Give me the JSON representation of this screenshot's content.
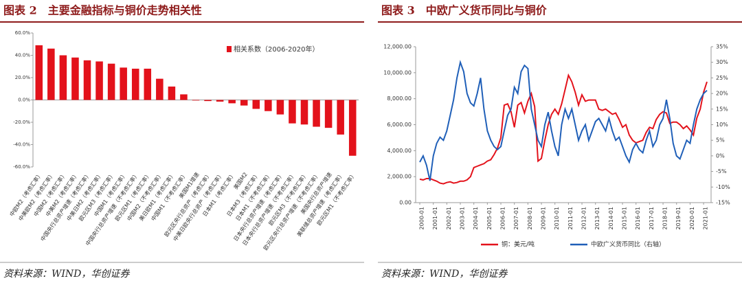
{
  "chart_data": [
    {
      "type": "bar",
      "title": "图表 2　主要金融指标与铜价走势相关性",
      "source": "资料来源：WIND，华创证券",
      "categories": [
        "中欧M2（考虑汇率）",
        "中美欧M2（考虑汇率）",
        "中国M2（考虑汇率）",
        "中美M2（考虑汇率）",
        "中国央行总资产增速（考虑汇率）",
        "中美日M2（考虑汇率）",
        "欧元区M3（考虑汇率）",
        "中国M1（考虑汇率）",
        "中国央行总资产增速（不考虑汇率）",
        "欧元区M1（考虑汇率）",
        "中国M2（不考虑汇率）",
        "美日欧M1（考虑汇率）",
        "中国M1（不考虑汇率）",
        "美国M1增速",
        "欧元区央行总资产（考虑汇率）",
        "中美日欧央行总资产（考虑汇率）",
        "日本M1（考虑汇率）",
        "美国M2",
        "日本M3（考虑汇率）",
        "日本M1（不考虑汇率）",
        "日本央行总资产增速（考虑汇率）",
        "日本央行总资产增速（不考虑汇率）",
        "欧元区M3（不考虑汇率）",
        "欧元区央行总资产增速（不考虑汇率）",
        "美国央行总资产增速",
        "美联储总资产增速（考虑汇率）",
        "欧元区M1（不考虑汇率）"
      ],
      "series": [
        {
          "name": "相关系数（2006-2020年）",
          "color": "#e3121b",
          "values": [
            49,
            46,
            40,
            38,
            35.5,
            34.5,
            32.5,
            29,
            28,
            28,
            19,
            12,
            5,
            -0.5,
            -1,
            -1.5,
            -3,
            -5,
            -8,
            -10,
            -13,
            -21,
            -22,
            -24,
            -25,
            -31,
            -50
          ]
        }
      ],
      "ylim": [
        -60,
        60
      ],
      "yticks": [
        {
          "value": -60,
          "label": "-60.0%"
        },
        {
          "value": -40,
          "label": "-40.0%"
        },
        {
          "value": -20,
          "label": "-20.0%"
        },
        {
          "value": 0,
          "label": "0.0%"
        },
        {
          "value": 20,
          "label": "20.0%"
        },
        {
          "value": 40,
          "label": "40.0%"
        },
        {
          "value": 60,
          "label": "60.0%"
        }
      ],
      "legend": "top-right",
      "grid": false
    },
    {
      "type": "line",
      "title": "图表 3　中欧广义货币同比与铜价",
      "source": "资料来源：WIND，华创证券",
      "x": [
        "2000-01",
        null,
        null,
        null,
        "2001-01",
        null,
        null,
        null,
        "2002-01",
        null,
        null,
        null,
        "2003-01",
        null,
        null,
        null,
        "2004-01",
        null,
        null,
        null,
        "2005-01",
        null,
        null,
        null,
        "2006-01",
        null,
        null,
        null,
        "2007-01",
        null,
        null,
        null,
        "2008-01",
        null,
        null,
        null,
        "2009-01",
        null,
        null,
        null,
        "2010-01",
        null,
        null,
        null,
        "2011-01",
        null,
        null,
        null,
        "2012-01",
        null,
        null,
        null,
        "2013-01",
        null,
        null,
        null,
        "2014-01",
        null,
        null,
        null,
        "2015-01",
        null,
        null,
        null,
        "2016-01",
        null,
        null,
        null,
        "2017-01",
        null,
        null,
        null,
        "2018-01",
        null,
        null,
        null,
        "2019-01",
        null,
        null,
        null,
        "2020-01",
        null,
        null,
        null,
        "2021-01",
        null
      ],
      "series": [
        {
          "name": "铜：美元/吨",
          "color": "#e3121b",
          "axis": "y",
          "values": [
            1800,
            1750,
            1850,
            1850,
            1750,
            1650,
            1500,
            1450,
            1550,
            1600,
            1500,
            1550,
            1650,
            1650,
            1750,
            2000,
            2700,
            2800,
            2900,
            3000,
            3200,
            3300,
            3700,
            4200,
            5000,
            7500,
            7600,
            7000,
            5800,
            7500,
            7700,
            6900,
            7800,
            8400,
            7400,
            3200,
            3400,
            4800,
            6000,
            6800,
            7200,
            6800,
            7600,
            8700,
            9800,
            9300,
            8500,
            7500,
            8300,
            7800,
            7900,
            7900,
            7900,
            7200,
            7100,
            7200,
            7000,
            6800,
            6900,
            6400,
            5800,
            6000,
            5200,
            4800,
            4600,
            4700,
            4800,
            5400,
            5800,
            5700,
            6400,
            6800,
            7000,
            6900,
            6100,
            6200,
            6200,
            6000,
            5700,
            5900,
            5600,
            5200,
            6500,
            7200,
            8500,
            9300
          ]
        },
        {
          "name": "中欧广义货币同比（右轴）",
          "color": "#1f5fb8",
          "axis": "y2",
          "values": [
            -2,
            0,
            -3,
            -8,
            0,
            4,
            6,
            5,
            8,
            13,
            18,
            25,
            30,
            27,
            20,
            17,
            16,
            20,
            25,
            15,
            8,
            5,
            3,
            2,
            3,
            8,
            13,
            15,
            22,
            20,
            27,
            29,
            28,
            15,
            10,
            5,
            3,
            10,
            14,
            8,
            3,
            0,
            10,
            15,
            12,
            15,
            10,
            5,
            8,
            10,
            5,
            8,
            11,
            12,
            10,
            8,
            12,
            8,
            5,
            6,
            3,
            0,
            -2,
            2,
            4,
            2,
            1,
            5,
            8,
            3,
            5,
            10,
            12,
            18,
            12,
            4,
            0,
            -1,
            2,
            5,
            4,
            10,
            15,
            18,
            20,
            21
          ]
        }
      ],
      "ylim": [
        0,
        12000
      ],
      "yticks": [
        {
          "value": 0,
          "label": "0.00"
        },
        {
          "value": 2000,
          "label": "2,000.00"
        },
        {
          "value": 4000,
          "label": "4,000.00"
        },
        {
          "value": 6000,
          "label": "6,000.00"
        },
        {
          "value": 8000,
          "label": "8,000.00"
        },
        {
          "value": 10000,
          "label": "10,000.00"
        },
        {
          "value": 12000,
          "label": "12,000.00"
        }
      ],
      "y2lim": [
        -15,
        35
      ],
      "y2ticks": [
        {
          "value": -15,
          "label": "-15%"
        },
        {
          "value": -10,
          "label": "-10%"
        },
        {
          "value": -5,
          "label": "-5%"
        },
        {
          "value": 0,
          "label": "0%"
        },
        {
          "value": 5,
          "label": "5%"
        },
        {
          "value": 10,
          "label": "10%"
        },
        {
          "value": 15,
          "label": "15%"
        },
        {
          "value": 20,
          "label": "20%"
        },
        {
          "value": 25,
          "label": "25%"
        },
        {
          "value": 30,
          "label": "30%"
        },
        {
          "value": 35,
          "label": "35%"
        }
      ],
      "legend": "bottom",
      "grid": false
    }
  ]
}
